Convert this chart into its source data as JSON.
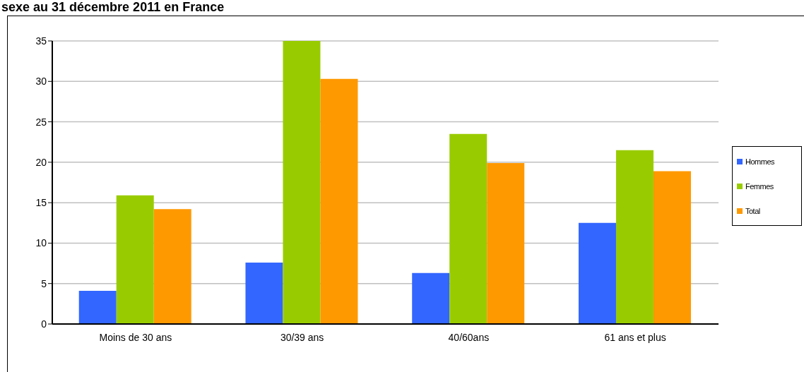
{
  "chart_data": {
    "type": "bar",
    "title": "sexe au 31 décembre 2011 en France",
    "categories": [
      "Moins de 30 ans",
      "30/39 ans",
      "40/60ans",
      "61 ans et plus"
    ],
    "series": [
      {
        "name": "Hommes",
        "color": "#3366ff",
        "values": [
          4.1,
          7.6,
          6.3,
          12.5
        ]
      },
      {
        "name": "Femmes",
        "color": "#99cc00",
        "values": [
          15.9,
          35.0,
          23.5,
          21.5
        ]
      },
      {
        "name": "Total",
        "color": "#ff9900",
        "values": [
          14.2,
          30.3,
          19.9,
          18.9
        ]
      }
    ],
    "ylim": [
      0,
      35
    ],
    "yticks": [
      0,
      5,
      10,
      15,
      20,
      25,
      30,
      35
    ],
    "grid": "y",
    "legend": "right"
  }
}
